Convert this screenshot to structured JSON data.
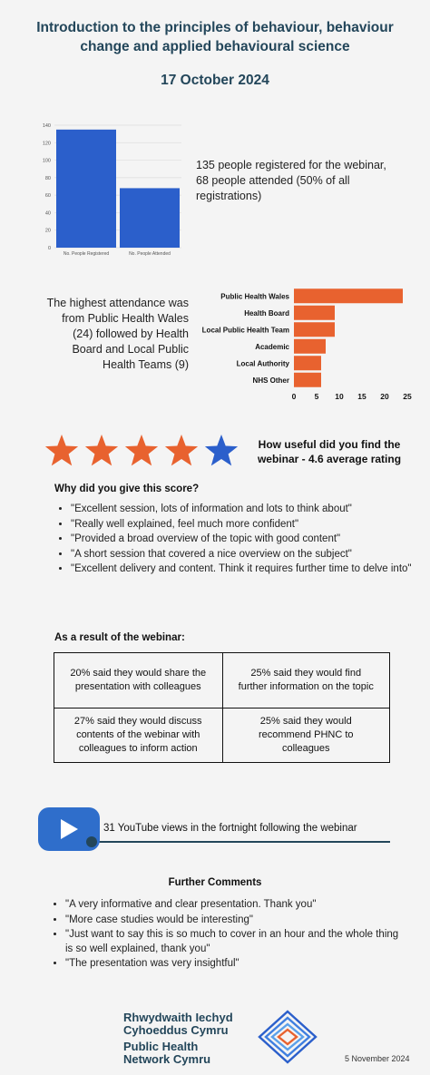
{
  "header": {
    "title": "Introduction to the principles of behaviour, behaviour change and applied behavioural science",
    "date": "17 October 2024"
  },
  "registration": {
    "summary": "135 people registered for the webinar, 68 people attended (50% of all registrations)"
  },
  "attendance": {
    "summary": "The highest attendance was from Public Health Wales (24) followed by Health Board and Local Public Health Teams (9)"
  },
  "chart_data": [
    {
      "type": "bar",
      "categories": [
        "No. People Registered",
        "No. People Attended"
      ],
      "values": [
        135,
        68
      ],
      "ylim": [
        0,
        140
      ],
      "yticks": [
        0,
        20,
        40,
        60,
        80,
        100,
        120,
        140
      ],
      "grid": true,
      "color": "#2b5fcb"
    },
    {
      "type": "bar",
      "orientation": "horizontal",
      "categories": [
        "Public Health Wales",
        "Health Board",
        "Local Public Health Team",
        "Academic",
        "Local Authority",
        "NHS Other"
      ],
      "values": [
        24,
        9,
        9,
        7,
        6,
        6
      ],
      "xlim": [
        0,
        25
      ],
      "xticks": [
        0,
        5,
        10,
        15,
        20,
        25
      ],
      "color": "#e8622f"
    }
  ],
  "rating": {
    "question": "How useful did you find the webinar - 4.6 average rating",
    "value": 4.6,
    "max": 5,
    "star_colors": [
      "#e8622f",
      "#e8622f",
      "#e8622f",
      "#e8622f",
      "#2b5fcb"
    ]
  },
  "why": {
    "heading": "Why did you give this score?",
    "items": [
      "\"Excellent session,  lots of information and lots to think about\"",
      "\"Really well explained, feel much more confident\"",
      "\"Provided a broad overview of the topic with good content\"",
      "\"A short session that covered a nice overview on the subject\"",
      "\"Excellent delivery and content. Think it requires further time to delve into\""
    ]
  },
  "result": {
    "heading": "As a result of the webinar:",
    "cells": [
      "20% said they would share the presentation with colleagues",
      "25% said they would find further information on the topic",
      "27% said they would discuss contents of the webinar with colleagues to inform action",
      "25% said they would recommend PHNC to colleagues"
    ]
  },
  "youtube": {
    "text": "31 YouTube views in the fortnight following the webinar",
    "icon": "play-icon"
  },
  "further": {
    "heading": "Further Comments",
    "items": [
      "\"A very informative and clear presentation. Thank you\"",
      "\"More case studies would be interesting\"",
      "\"Just want to say this is so much to cover in an hour and the whole thing is so well explained, thank you\"",
      "\"The presentation was very insightful\""
    ]
  },
  "footer": {
    "org_welsh_1": "Rhwydwaith Iechyd",
    "org_welsh_2": "Cyhoeddus Cymru",
    "org_en_1": "Public Health",
    "org_en_2": "Network Cymru",
    "date": "5 November 2024"
  }
}
